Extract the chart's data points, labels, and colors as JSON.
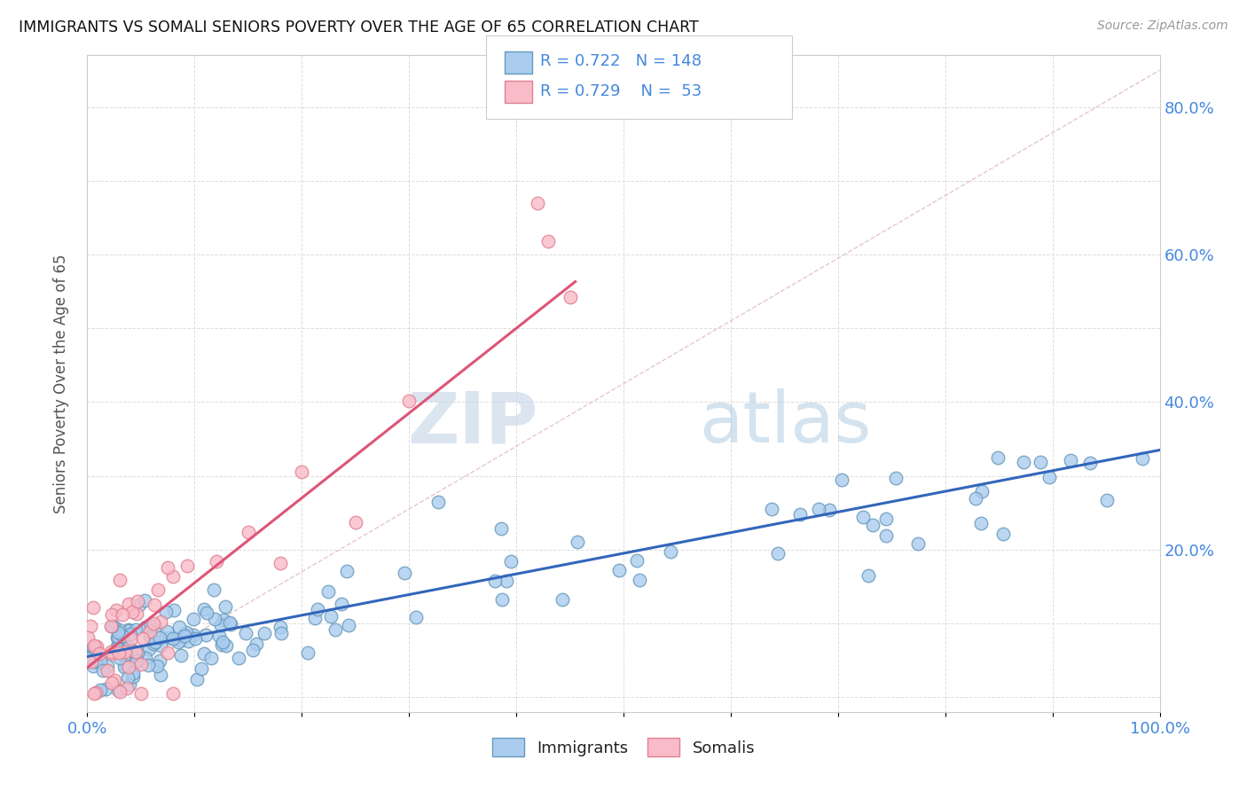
{
  "title": "IMMIGRANTS VS SOMALI SENIORS POVERTY OVER THE AGE OF 65 CORRELATION CHART",
  "source": "Source: ZipAtlas.com",
  "ylabel": "Seniors Poverty Over the Age of 65",
  "xlim": [
    0,
    1.0
  ],
  "ylim": [
    -0.02,
    0.87
  ],
  "xtick_vals": [
    0.0,
    0.1,
    0.2,
    0.3,
    0.4,
    0.5,
    0.6,
    0.7,
    0.8,
    0.9,
    1.0
  ],
  "xticklabels": [
    "0.0%",
    "",
    "",
    "",
    "",
    "",
    "",
    "",
    "",
    "",
    "100.0%"
  ],
  "ytick_vals": [
    0.0,
    0.1,
    0.2,
    0.3,
    0.4,
    0.5,
    0.6,
    0.7,
    0.8
  ],
  "yticklabels_right": [
    "",
    "",
    "20.0%",
    "",
    "40.0%",
    "",
    "60.0%",
    "",
    "80.0%"
  ],
  "immigrants_color": "#aaccee",
  "immigrants_edge_color": "#6699bb",
  "somalis_color": "#f9bbc8",
  "somalis_edge_color": "#e08090",
  "immigrants_line_color": "#3366bb",
  "somalis_line_color": "#dd5577",
  "diagonal_color": "#e0b8c0",
  "R_immigrants": 0.722,
  "N_immigrants": 148,
  "R_somalis": 0.729,
  "N_somalis": 53,
  "legend_immigrants": "Immigrants",
  "legend_somalis": "Somalis",
  "watermark_zip": "ZIP",
  "watermark_atlas": "atlas",
  "background_color": "#ffffff",
  "grid_color": "#dddddd",
  "title_color": "#111111",
  "axis_label_color": "#555555",
  "tick_color": "#4488dd",
  "legend_r_color": "#4488dd",
  "imm_slope": 0.28,
  "imm_intercept": 0.055,
  "som_slope": 1.15,
  "som_intercept": 0.04,
  "som_line_xmax": 0.455
}
